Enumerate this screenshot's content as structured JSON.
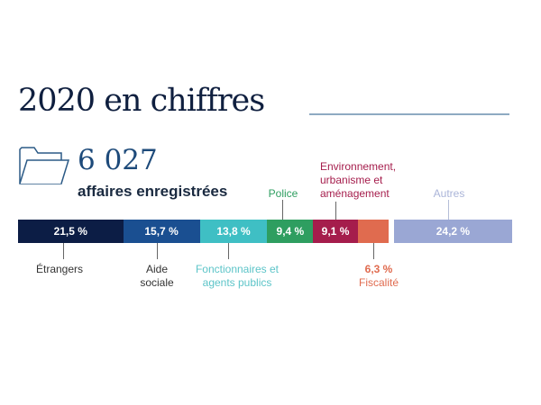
{
  "header": {
    "title": "2020 en chiffres",
    "count": "6 027",
    "count_label": "affaires enregistrées"
  },
  "chart_data": {
    "type": "bar",
    "orientation": "horizontal-stacked",
    "unit": "%",
    "categories": [
      "Étrangers",
      "Aide sociale",
      "Fonctionnaires et agents publics",
      "Police",
      "Environnement, urbanisme et aménagement",
      "Fiscalité",
      "Autres"
    ],
    "values": [
      21.5,
      15.7,
      13.8,
      9.4,
      9.1,
      6.3,
      24.2
    ],
    "value_labels": [
      "21,5 %",
      "15,7 %",
      "13,8 %",
      "9,4 %",
      "9,1 %",
      "6,3 %",
      "24,2 %"
    ],
    "colors": [
      "#0c1d45",
      "#1a4f91",
      "#3fbfc4",
      "#2e9e60",
      "#a51d4c",
      "#e06b4f",
      "#9aa7d4"
    ],
    "label_lines": [
      [
        "Étrangers"
      ],
      [
        "Aide",
        "sociale"
      ],
      [
        "Fonctionnaires et",
        "agents publics"
      ],
      [
        "Police"
      ],
      [
        "Environnement,",
        "urbanisme et",
        "aménagement"
      ],
      [
        "Fiscalité"
      ],
      [
        "Autres"
      ]
    ]
  }
}
